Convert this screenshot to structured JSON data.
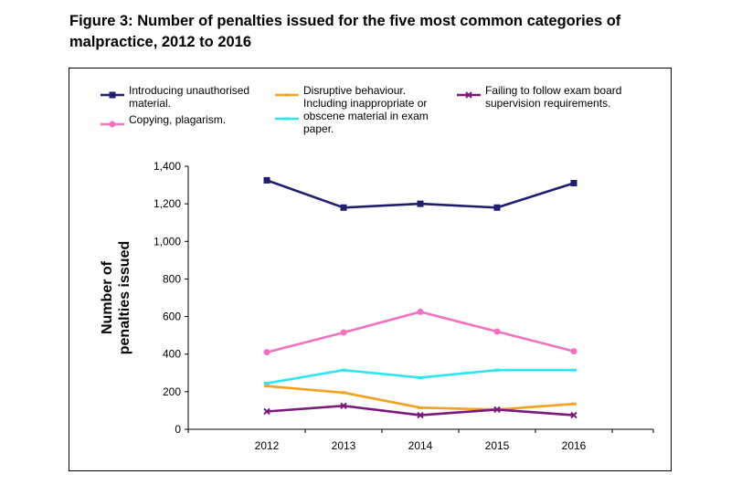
{
  "title_line1": "Figure 3: Number of penalties issued for the five most common categories of",
  "title_line2": "malpractice, 2012 to 2016",
  "chart_data": {
    "type": "line",
    "title": "Figure 3: Number of penalties issued for the five most common categories of malpractice, 2012 to 2016",
    "xlabel": "",
    "ylabel_lines": [
      "Number of",
      "penalties issued"
    ],
    "x": [
      "2012",
      "2013",
      "2014",
      "2015",
      "2016"
    ],
    "y_ticks": [
      "0",
      "200",
      "400",
      "600",
      "800",
      "1,000",
      "1,200",
      "1,400"
    ],
    "ylim": [
      0,
      1400
    ],
    "legend_position": "top",
    "series": [
      {
        "name_lines": [
          "Introducing unauthorised",
          "material."
        ],
        "color": "#1f1f6e",
        "marker": "square",
        "values": [
          1325,
          1180,
          1200,
          1180,
          1310
        ]
      },
      {
        "name_lines": [
          "Copying, plagarism."
        ],
        "color": "#f272c0",
        "marker": "circle",
        "values": [
          410,
          515,
          625,
          520,
          415
        ]
      },
      {
        "name_lines": [
          "Disruptive behaviour.",
          "Including inappropriate or",
          "obscene material in exam",
          "paper."
        ],
        "color": "#f4a21e",
        "marker": "dash",
        "values": [
          230,
          195,
          115,
          105,
          135
        ]
      },
      {
        "name_lines": [
          "Failing to follow exam board",
          "supervision requirements."
        ],
        "color": "#7a1b7c",
        "marker": "x",
        "values": [
          95,
          125,
          75,
          105,
          75
        ]
      },
      {
        "name_lines": [],
        "color": "#2de6ef",
        "marker": "dash",
        "values": [
          245,
          315,
          275,
          315,
          315
        ]
      }
    ]
  }
}
